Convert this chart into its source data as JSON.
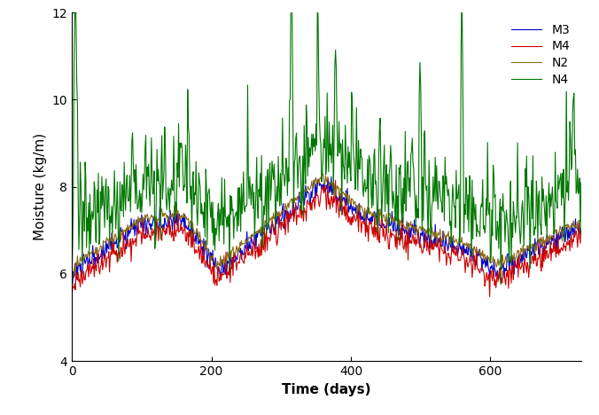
{
  "title": "",
  "xlabel": "Time (days)",
  "ylabel": "Moisture (kg/m)",
  "xlim": [
    0,
    730
  ],
  "ylim": [
    4,
    12
  ],
  "yticks": [
    4,
    6,
    8,
    10,
    12
  ],
  "xticks": [
    0,
    200,
    400,
    600
  ],
  "legend_labels": [
    "M3",
    "M4",
    "N2",
    "N4"
  ],
  "colors": {
    "M3": "#0000cc",
    "M4": "#cc0000",
    "N2": "#8B6914",
    "N4": "#007700"
  },
  "linewidth": 0.8,
  "background_color": "#ffffff",
  "legend_loc": "upper right",
  "tick_fontsize": 10,
  "label_fontsize": 11
}
